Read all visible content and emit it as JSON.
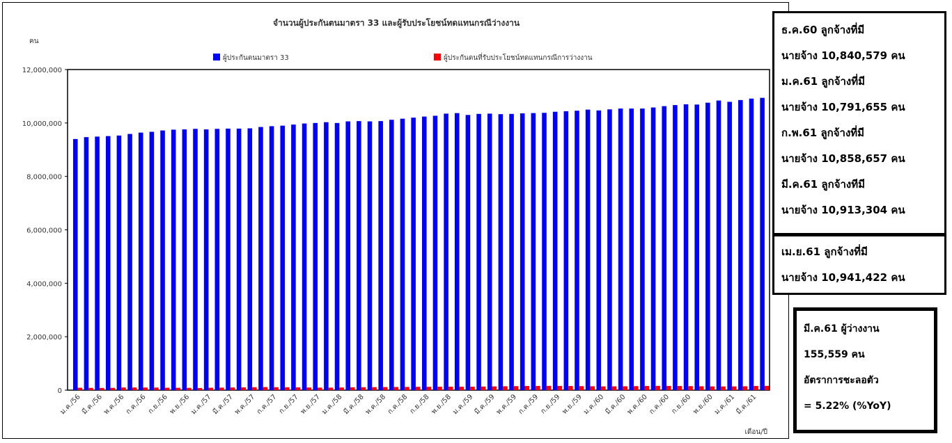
{
  "chart_data": {
    "type": "bar",
    "title": "จำนวนผู้ประกันตนมาตรา 33 และผู้รับประโยชน์ทดแทนกรณีว่างงาน",
    "ylabel": "คน",
    "xlabel": "เดือน/ปี",
    "ylim": [
      0,
      12000000
    ],
    "y_ticks": [
      "0",
      "2,000,000",
      "4,000,000",
      "6,000,000",
      "8,000,000",
      "10,000,000",
      "12,000,000"
    ],
    "legend_position": "top",
    "categories": [
      "ม.ค./56",
      "ก.พ./56",
      "มี.ค./56",
      "เม.ย./56",
      "พ.ค./56",
      "มิ.ย./56",
      "ก.ค./56",
      "ส.ค./56",
      "ก.ย./56",
      "ต.ค./56",
      "พ.ย./56",
      "ธ.ค./56",
      "ม.ค./57",
      "ก.พ./57",
      "มี.ค./57",
      "เม.ย./57",
      "พ.ค./57",
      "มิ.ย./57",
      "ก.ค./57",
      "ส.ค./57",
      "ก.ย./57",
      "ต.ค./57",
      "พ.ย./57",
      "ธ.ค./57",
      "ม.ค./58",
      "ก.พ./58",
      "มี.ค./58",
      "เม.ย./58",
      "พ.ค./58",
      "มิ.ย./58",
      "ก.ค./58",
      "ส.ค./58",
      "ก.ย./58",
      "ต.ค./58",
      "พ.ย./58",
      "ธ.ค./58",
      "ม.ค./59",
      "ก.พ./59",
      "มี.ค./59",
      "เม.ย./59",
      "พ.ค./59",
      "มิ.ย./59",
      "ก.ค./59",
      "ส.ค./59",
      "ก.ย./59",
      "ต.ค./59",
      "พ.ย./59",
      "ธ.ค./59",
      "ม.ค./60",
      "ก.พ./60",
      "มี.ค./60",
      "เม.ย./60",
      "พ.ค./60",
      "มิ.ย./60",
      "ก.ค./60",
      "ส.ค./60",
      "ก.ย./60",
      "ต.ค./60",
      "พ.ย./60",
      "ธ.ค./60",
      "ม.ค./61",
      "ก.พ./61",
      "มี.ค./61",
      "เม.ย./61"
    ],
    "visible_tick_labels": [
      "ม.ค./56",
      "มี.ค./56",
      "พ.ค./56",
      "ก.ค./56",
      "ก.ย./56",
      "พ.ย./56",
      "ม.ค./57",
      "มี.ค./57",
      "พ.ค./57",
      "ก.ค./57",
      "ก.ย./57",
      "พ.ย./57",
      "ม.ค./58",
      "มี.ค./58",
      "พ.ค./58",
      "ก.ค./58",
      "ก.ย./58",
      "พ.ย./58",
      "ม.ค./59",
      "มี.ค./59",
      "พ.ค./59",
      "ก.ค./59",
      "ก.ย./59",
      "พ.ย./59",
      "ม.ค./60",
      "มี.ค./60",
      "พ.ค./60",
      "ก.ค./60",
      "ก.ย./60",
      "พ.ย./60",
      "ม.ค./61",
      "มี.ค./61"
    ],
    "series": [
      {
        "name": "ผู้ประกันตนมาตรา 33",
        "color": "#0000ff",
        "values": [
          9400000,
          9470000,
          9490000,
          9510000,
          9530000,
          9590000,
          9640000,
          9670000,
          9720000,
          9750000,
          9760000,
          9780000,
          9760000,
          9780000,
          9790000,
          9790000,
          9800000,
          9850000,
          9880000,
          9900000,
          9940000,
          9980000,
          10000000,
          10030000,
          10000000,
          10060000,
          10070000,
          10060000,
          10070000,
          10120000,
          10160000,
          10200000,
          10240000,
          10270000,
          10350000,
          10370000,
          10300000,
          10340000,
          10350000,
          10330000,
          10340000,
          10360000,
          10370000,
          10380000,
          10420000,
          10440000,
          10460000,
          10500000,
          10470000,
          10510000,
          10540000,
          10540000,
          10540000,
          10580000,
          10630000,
          10670000,
          10700000,
          10690000,
          10760000,
          10840579,
          10791655,
          10858657,
          10913304,
          10941422
        ]
      },
      {
        "name": "ผู้ประกันตนที่รับประโยชน์ทดแทนกรณีการว่างงาน",
        "color": "#ff0000",
        "values": [
          90000,
          85000,
          82000,
          85000,
          100000,
          100000,
          98000,
          97000,
          90000,
          88000,
          85000,
          80000,
          90000,
          95000,
          100000,
          105000,
          110000,
          115000,
          110000,
          108000,
          105000,
          100000,
          95000,
          95000,
          100000,
          108000,
          110000,
          112000,
          115000,
          118000,
          120000,
          125000,
          125000,
          128000,
          130000,
          128000,
          130000,
          135000,
          140000,
          145000,
          150000,
          155000,
          158000,
          160000,
          158000,
          155000,
          150000,
          145000,
          140000,
          142000,
          145000,
          150000,
          155000,
          160000,
          158000,
          155000,
          150000,
          145000,
          140000,
          138000,
          140000,
          145000,
          155559,
          160000
        ]
      }
    ]
  },
  "info_box": {
    "lines": [
      "ธ.ค.60 ลูกจ้างที่มี",
      "นายจ้าง 10,840,579 คน",
      "ม.ค.61 ลูกจ้างที่มี",
      "นายจ้าง 10,791,655 คน",
      "ก.พ.61 ลูกจ้างที่มี",
      "นายจ้าง 10,858,657 คน",
      "มี.ค.61 ลูกจ้างทีมี",
      "นายจ้าง 10,913,304 คน"
    ]
  },
  "info_box_2": {
    "lines": [
      "เม.ย.61 ลูกจ้างที่มี",
      "นายจ้าง 10,941,422 คน"
    ]
  },
  "summary_box": {
    "lines": [
      "มี.ค.61 ผู้ว่างงาน",
      "155,559 คน",
      "อัตราการชะลอตัว",
      "= 5.22% (%YoY)"
    ]
  }
}
